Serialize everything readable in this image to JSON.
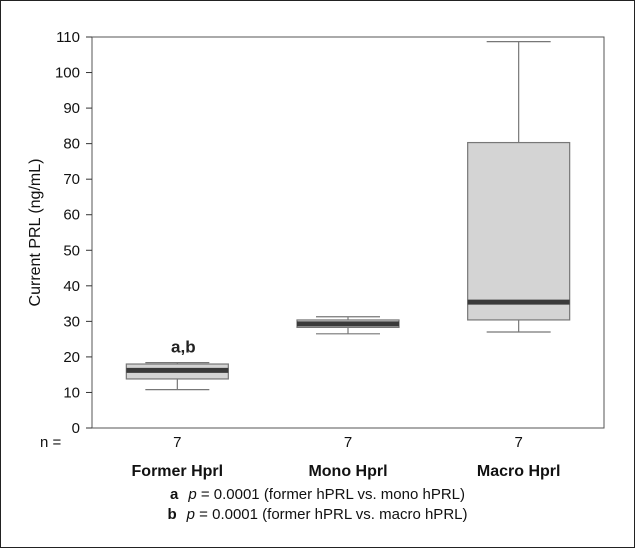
{
  "chart_data": {
    "type": "boxplot",
    "ylabel": "Current PRL  (ng/mL)",
    "ylim": [
      0,
      110
    ],
    "yticks": [
      0,
      10,
      20,
      30,
      40,
      50,
      60,
      70,
      80,
      90,
      100,
      110
    ],
    "categories": [
      "Former Hprl",
      "Mono Hprl",
      "Macro Hprl"
    ],
    "n_label": "n =",
    "n_values": [
      "7",
      "7",
      "7"
    ],
    "boxes": [
      {
        "category": "Former Hprl",
        "whisker_low": 10.8,
        "q1": 13.8,
        "median": 16.2,
        "q3": 18.0,
        "whisker_high": 18.4,
        "annotation": "a,b"
      },
      {
        "category": "Mono Hprl",
        "whisker_low": 26.5,
        "q1": 28.3,
        "median": 29.3,
        "q3": 30.4,
        "whisker_high": 31.3,
        "annotation": ""
      },
      {
        "category": "Macro Hprl",
        "whisker_low": 27.0,
        "q1": 30.4,
        "median": 35.4,
        "q3": 80.3,
        "whisker_high": 108.7,
        "annotation": ""
      }
    ],
    "colors": {
      "box_fill": "#d4d4d4",
      "median": "#3a3a3a",
      "outline": "#777777"
    },
    "footnotes": [
      {
        "key": "a",
        "p_symbol": "p",
        "text": " = 0.0001 (former hPRL vs. mono hPRL)"
      },
      {
        "key": "b",
        "p_symbol": "p",
        "text": " = 0.0001 (former hPRL vs. macro hPRL)"
      }
    ]
  }
}
